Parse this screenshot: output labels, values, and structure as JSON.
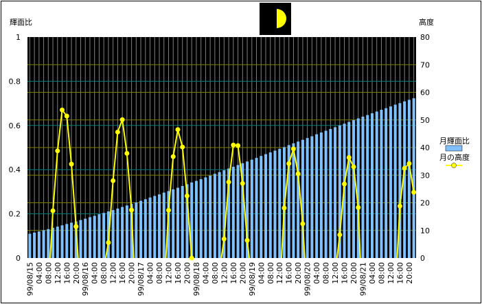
{
  "chart_data": {
    "type": "bar+line",
    "title": "",
    "moon_phase_icon": "first-quarter-moon-icon",
    "ylabel_left": "輝面比",
    "ylabel_right": "高度",
    "ylim_left": [
      0,
      1
    ],
    "ylim_right": [
      0,
      80
    ],
    "yticks_left": [
      "0",
      "0.2",
      "0.4",
      "0.6",
      "0.8",
      "1"
    ],
    "yticks_right": [
      "0",
      "10",
      "20",
      "30",
      "40",
      "50",
      "60",
      "70",
      "80"
    ],
    "x_tick_labels": [
      "99/08/15",
      "04:00",
      "08:00",
      "12:00",
      "16:00",
      "20:00",
      "99/08/16",
      "04:00",
      "08:00",
      "12:00",
      "16:00",
      "20:00",
      "99/08/17",
      "04:00",
      "08:00",
      "12:00",
      "16:00",
      "20:00",
      "99/08/18",
      "04:00",
      "08:00",
      "12:00",
      "16:00",
      "20:00",
      "99/08/19",
      "04:00",
      "08:00",
      "12:00",
      "16:00",
      "20:00",
      "99/08/20",
      "04:00",
      "08:00",
      "12:00",
      "16:00",
      "20:00",
      "99/08/21",
      "04:00",
      "08:00",
      "12:00",
      "16:00",
      "20:00"
    ],
    "x_interval": "2 hours",
    "legend_position": "right",
    "grid": true,
    "colors": {
      "plot_bg": "#000000",
      "bars": "#80c0ff",
      "line": "#ffff00",
      "grid_left": "#008080",
      "grid_right": "#808000",
      "grid_vertical": "#808080"
    },
    "series": [
      {
        "name": "月輝面比",
        "type": "bar",
        "axis": "left",
        "values": [
          0.11,
          0.115,
          0.12,
          0.126,
          0.131,
          0.137,
          0.142,
          0.148,
          0.154,
          0.16,
          0.166,
          0.172,
          0.178,
          0.185,
          0.191,
          0.198,
          0.204,
          0.211,
          0.217,
          0.224,
          0.231,
          0.238,
          0.245,
          0.252,
          0.259,
          0.266,
          0.274,
          0.281,
          0.288,
          0.296,
          0.303,
          0.311,
          0.318,
          0.326,
          0.334,
          0.342,
          0.349,
          0.357,
          0.365,
          0.373,
          0.381,
          0.389,
          0.397,
          0.405,
          0.413,
          0.421,
          0.429,
          0.437,
          0.445,
          0.453,
          0.462,
          0.47,
          0.478,
          0.486,
          0.494,
          0.502,
          0.511,
          0.519,
          0.527,
          0.535,
          0.543,
          0.551,
          0.56,
          0.568,
          0.576,
          0.584,
          0.592,
          0.6,
          0.608,
          0.616,
          0.624,
          0.632,
          0.64,
          0.647,
          0.655,
          0.663,
          0.671,
          0.678,
          0.686,
          0.694,
          0.701,
          0.709,
          0.716,
          0.723
        ]
      },
      {
        "name": "月の高度",
        "type": "line",
        "axis": "right",
        "marker": "circle",
        "values": [
          null,
          null,
          null,
          null,
          null,
          17.1,
          38.8,
          53.6,
          51.4,
          34.0,
          11.4,
          null,
          null,
          null,
          null,
          null,
          null,
          5.6,
          28.0,
          45.6,
          50.1,
          37.9,
          17.4,
          null,
          null,
          null,
          null,
          null,
          null,
          null,
          17.3,
          36.7,
          46.5,
          40.2,
          22.5,
          0,
          null,
          null,
          null,
          null,
          null,
          null,
          6.9,
          27.5,
          40.9,
          40.7,
          27.0,
          6.4,
          null,
          null,
          null,
          null,
          null,
          null,
          null,
          18.1,
          34.2,
          39.5,
          30.5,
          12.4,
          null,
          null,
          null,
          null,
          null,
          null,
          null,
          8.4,
          26.8,
          36.4,
          33.0,
          18.3,
          null,
          null,
          null,
          null,
          null,
          null,
          null,
          null,
          18.8,
          32.5,
          34.2,
          23.8
        ]
      }
    ]
  }
}
